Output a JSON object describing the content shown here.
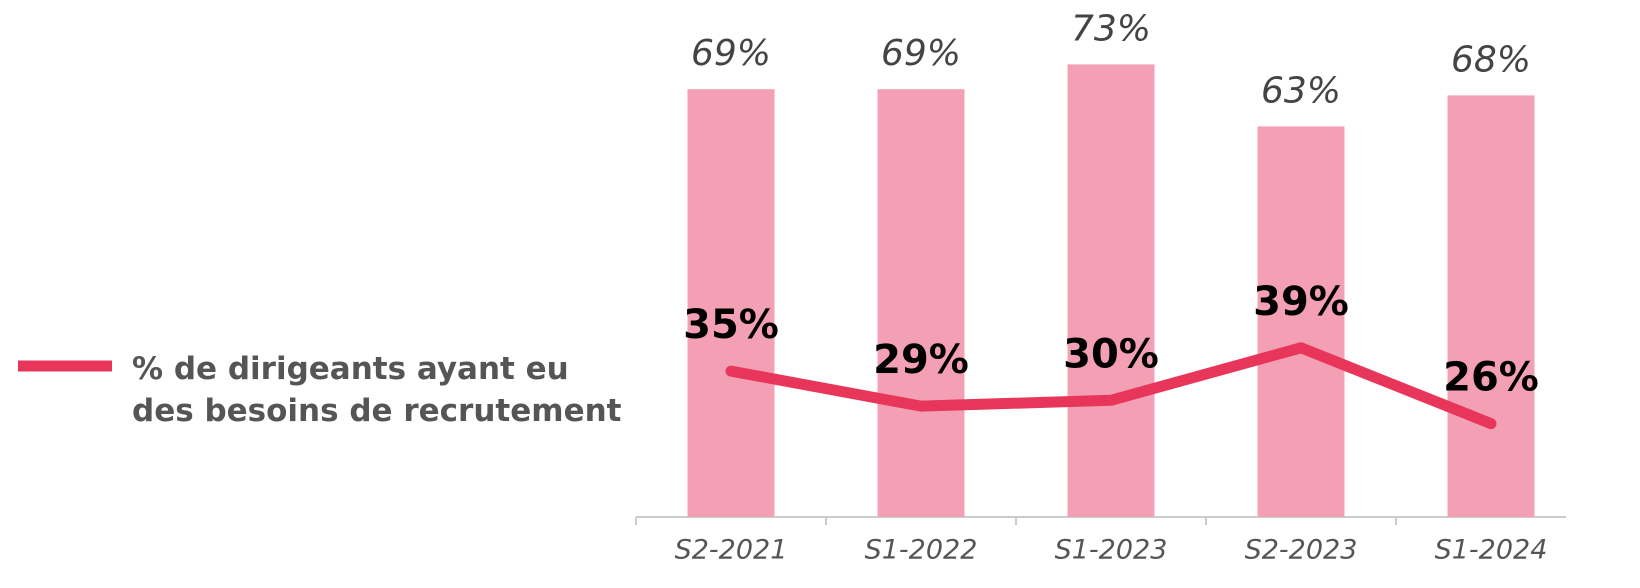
{
  "chart_data": {
    "type": "bar",
    "categories": [
      "S2-2021",
      "S1-2022",
      "S1-2023",
      "S2-2023",
      "S1-2024"
    ],
    "ylim": [
      0,
      80
    ],
    "y2lim": [
      10,
      95
    ],
    "legend": "left",
    "series": [
      {
        "type": "bar",
        "color": "#f4a0b4",
        "values": [
          69,
          69,
          73,
          63,
          68
        ],
        "value_labels": [
          "69%",
          "69%",
          "73%",
          "63%",
          "68%"
        ]
      },
      {
        "type": "line",
        "axis": "y2",
        "name": "% de dirigeants ayant eu des besoins de recrutement",
        "color": "#e8365a",
        "values": [
          35,
          29,
          30,
          39,
          26
        ],
        "value_labels": [
          "35%",
          "29%",
          "30%",
          "39%",
          "26%"
        ]
      }
    ]
  }
}
